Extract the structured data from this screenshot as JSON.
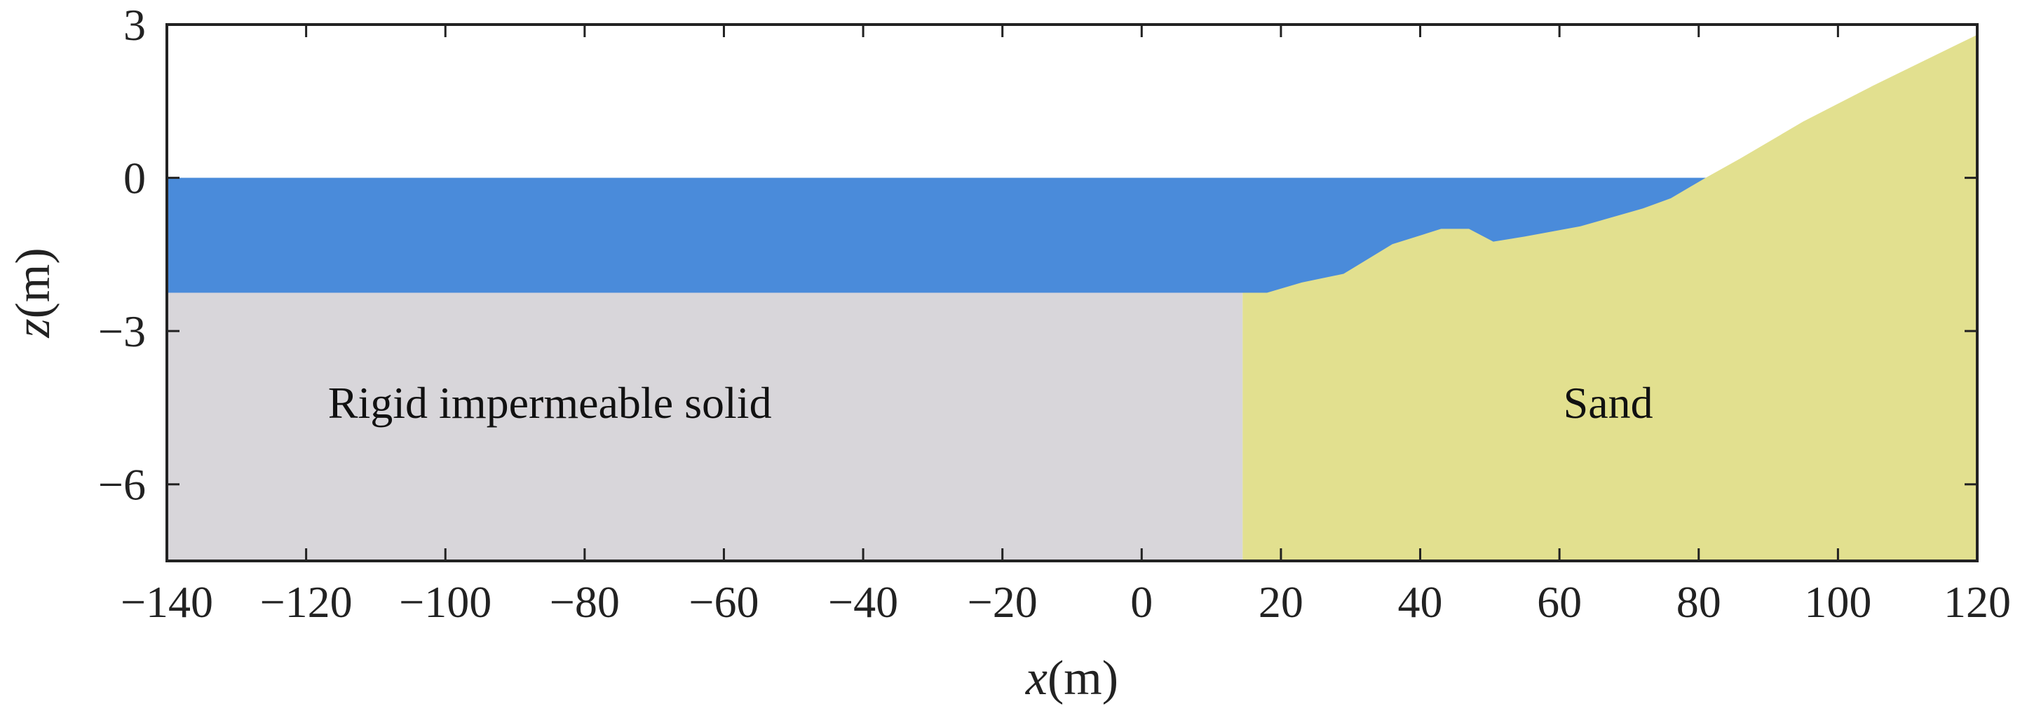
{
  "chart_data": {
    "type": "area",
    "title": "",
    "xlabel": {
      "var": "x",
      "unit": "(m)"
    },
    "ylabel": {
      "var": "z",
      "unit": "(m)"
    },
    "xlim": [
      -140,
      120
    ],
    "ylim": [
      -7.5,
      3
    ],
    "xticks": [
      -140,
      -120,
      -100,
      -80,
      -60,
      -40,
      -20,
      0,
      20,
      40,
      60,
      80,
      100,
      120
    ],
    "yticks": [
      3,
      0,
      -3,
      -6
    ],
    "xtick_labels": [
      "−140",
      "−120",
      "−100",
      "−80",
      "−60",
      "−40",
      "−20",
      "0",
      "20",
      "40",
      "60",
      "80",
      "100",
      "120"
    ],
    "ytick_labels": [
      "3",
      "0",
      "−3",
      "−6"
    ],
    "grid": false,
    "water": {
      "color": "#4a8bda",
      "surface_z": 0,
      "bottom_z": -2.25
    },
    "rigid_solid": {
      "label": "Rigid impermeable solid",
      "color": "#d8d6da",
      "x_range": [
        -140,
        14.5
      ],
      "top_z": -2.25
    },
    "sand": {
      "label": "Sand",
      "color": "#e2e08f",
      "profile": [
        [
          14.5,
          -2.25
        ],
        [
          18,
          -2.25
        ],
        [
          23,
          -2.05
        ],
        [
          29,
          -1.88
        ],
        [
          36,
          -1.3
        ],
        [
          43,
          -1.0
        ],
        [
          47,
          -1.0
        ],
        [
          50.5,
          -1.25
        ],
        [
          55,
          -1.15
        ],
        [
          63,
          -0.95
        ],
        [
          72,
          -0.6
        ],
        [
          76,
          -0.4
        ],
        [
          81,
          0.0
        ],
        [
          86,
          0.38
        ],
        [
          95,
          1.1
        ],
        [
          105,
          1.8
        ],
        [
          120,
          2.8
        ]
      ]
    }
  }
}
